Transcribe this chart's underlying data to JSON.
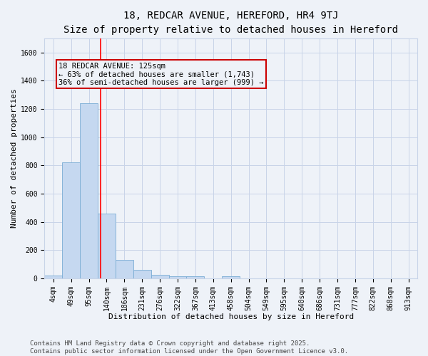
{
  "title": "18, REDCAR AVENUE, HEREFORD, HR4 9TJ",
  "subtitle": "Size of property relative to detached houses in Hereford",
  "xlabel": "Distribution of detached houses by size in Hereford",
  "ylabel": "Number of detached properties",
  "bar_labels": [
    "4sqm",
    "49sqm",
    "95sqm",
    "140sqm",
    "186sqm",
    "231sqm",
    "276sqm",
    "322sqm",
    "367sqm",
    "413sqm",
    "458sqm",
    "504sqm",
    "549sqm",
    "595sqm",
    "640sqm",
    "686sqm",
    "731sqm",
    "777sqm",
    "822sqm",
    "868sqm",
    "913sqm"
  ],
  "bar_values": [
    20,
    820,
    1240,
    460,
    130,
    60,
    25,
    15,
    15,
    0,
    15,
    0,
    0,
    0,
    0,
    0,
    0,
    0,
    0,
    0,
    0
  ],
  "bar_color": "#c5d8f0",
  "bar_edge_color": "#7aadd4",
  "grid_color": "#c8d4e8",
  "background_color": "#eef2f8",
  "red_line_x": 2.65,
  "annotation_text": "18 REDCAR AVENUE: 125sqm\n← 63% of detached houses are smaller (1,743)\n36% of semi-detached houses are larger (999) →",
  "annotation_box_color": "#cc0000",
  "ylim": [
    0,
    1700
  ],
  "yticks": [
    0,
    200,
    400,
    600,
    800,
    1000,
    1200,
    1400,
    1600
  ],
  "footer_line1": "Contains HM Land Registry data © Crown copyright and database right 2025.",
  "footer_line2": "Contains public sector information licensed under the Open Government Licence v3.0.",
  "title_fontsize": 10,
  "axis_label_fontsize": 8,
  "tick_fontsize": 7,
  "footer_fontsize": 6.5,
  "annotation_fontsize": 7.5
}
